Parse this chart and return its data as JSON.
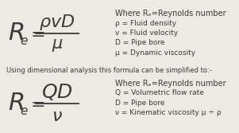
{
  "bg_color": "#ede9e3",
  "text_color": "#3a3a3a",
  "where1_lines": [
    "Where Rₑ=Reynolds number",
    "ρ = Fluid density",
    "v = Fluid velocity",
    "D = Pipe bore",
    "μ = Dynamic viscosity"
  ],
  "middle_text": "Using dimensional analysis this formula can be simplified to:-",
  "where2_lines": [
    "Where Rₑ=Reynolds number",
    "Q = Volumetric flow rate",
    "D = Pipe bore",
    "ν = Kinematic viscosity μ ÷ ρ"
  ]
}
